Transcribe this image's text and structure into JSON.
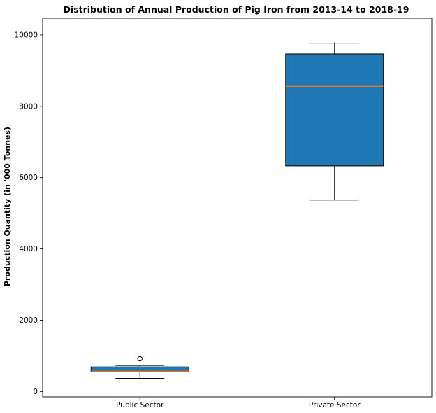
{
  "chart_data": {
    "type": "boxplot",
    "title": "Distribution of Annual Production of Pig Iron from 2013-14 to 2018-19",
    "xlabel": "",
    "ylabel": "Production Quantity (in '000 Tonnes)",
    "ylim": [
      -150,
      10470
    ],
    "yticks": [
      0,
      2000,
      4000,
      6000,
      8000,
      10000
    ],
    "grid": false,
    "categories": [
      "Public Sector",
      "Private Sector"
    ],
    "boxes": [
      {
        "category": "Public Sector",
        "whisker_low": 370,
        "q1": 560,
        "median": 570,
        "q3": 690,
        "whisker_high": 730,
        "outliers": [
          920
        ]
      },
      {
        "category": "Private Sector",
        "whisker_low": 5370,
        "q1": 6330,
        "median": 8560,
        "q3": 9470,
        "whisker_high": 9770,
        "outliers": []
      }
    ],
    "colors": {
      "box_fill": "#1f77b4",
      "median": "#ff7f0e",
      "line": "#000000"
    }
  }
}
